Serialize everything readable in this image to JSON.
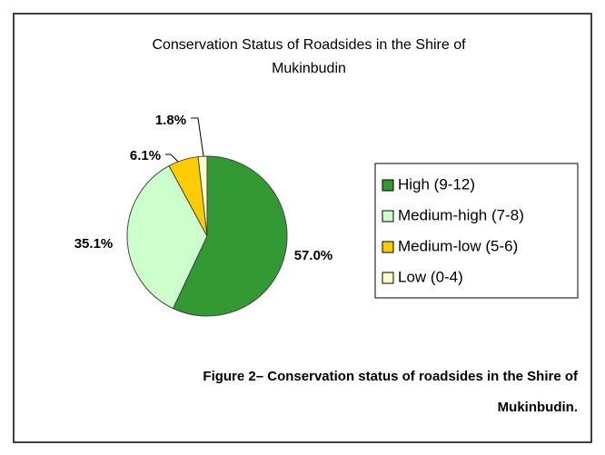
{
  "chart_data": {
    "type": "pie",
    "title": "Conservation Status of Roadsides in the Shire of Mukinbudin",
    "categories": [
      "High (9-12)",
      "Medium-high (7-8)",
      "Medium-low (5-6)",
      "Low (0-4)"
    ],
    "values": [
      57.0,
      35.1,
      6.1,
      1.8
    ],
    "value_labels": [
      "57.0%",
      "35.1%",
      "6.1%",
      "1.8%"
    ],
    "colors": [
      "#339933",
      "#ccffcc",
      "#ffcc00",
      "#ffffcc"
    ],
    "legend": "right",
    "caption": "Figure 2– Conservation status of roadsides in the Shire of Mukinbudin."
  }
}
